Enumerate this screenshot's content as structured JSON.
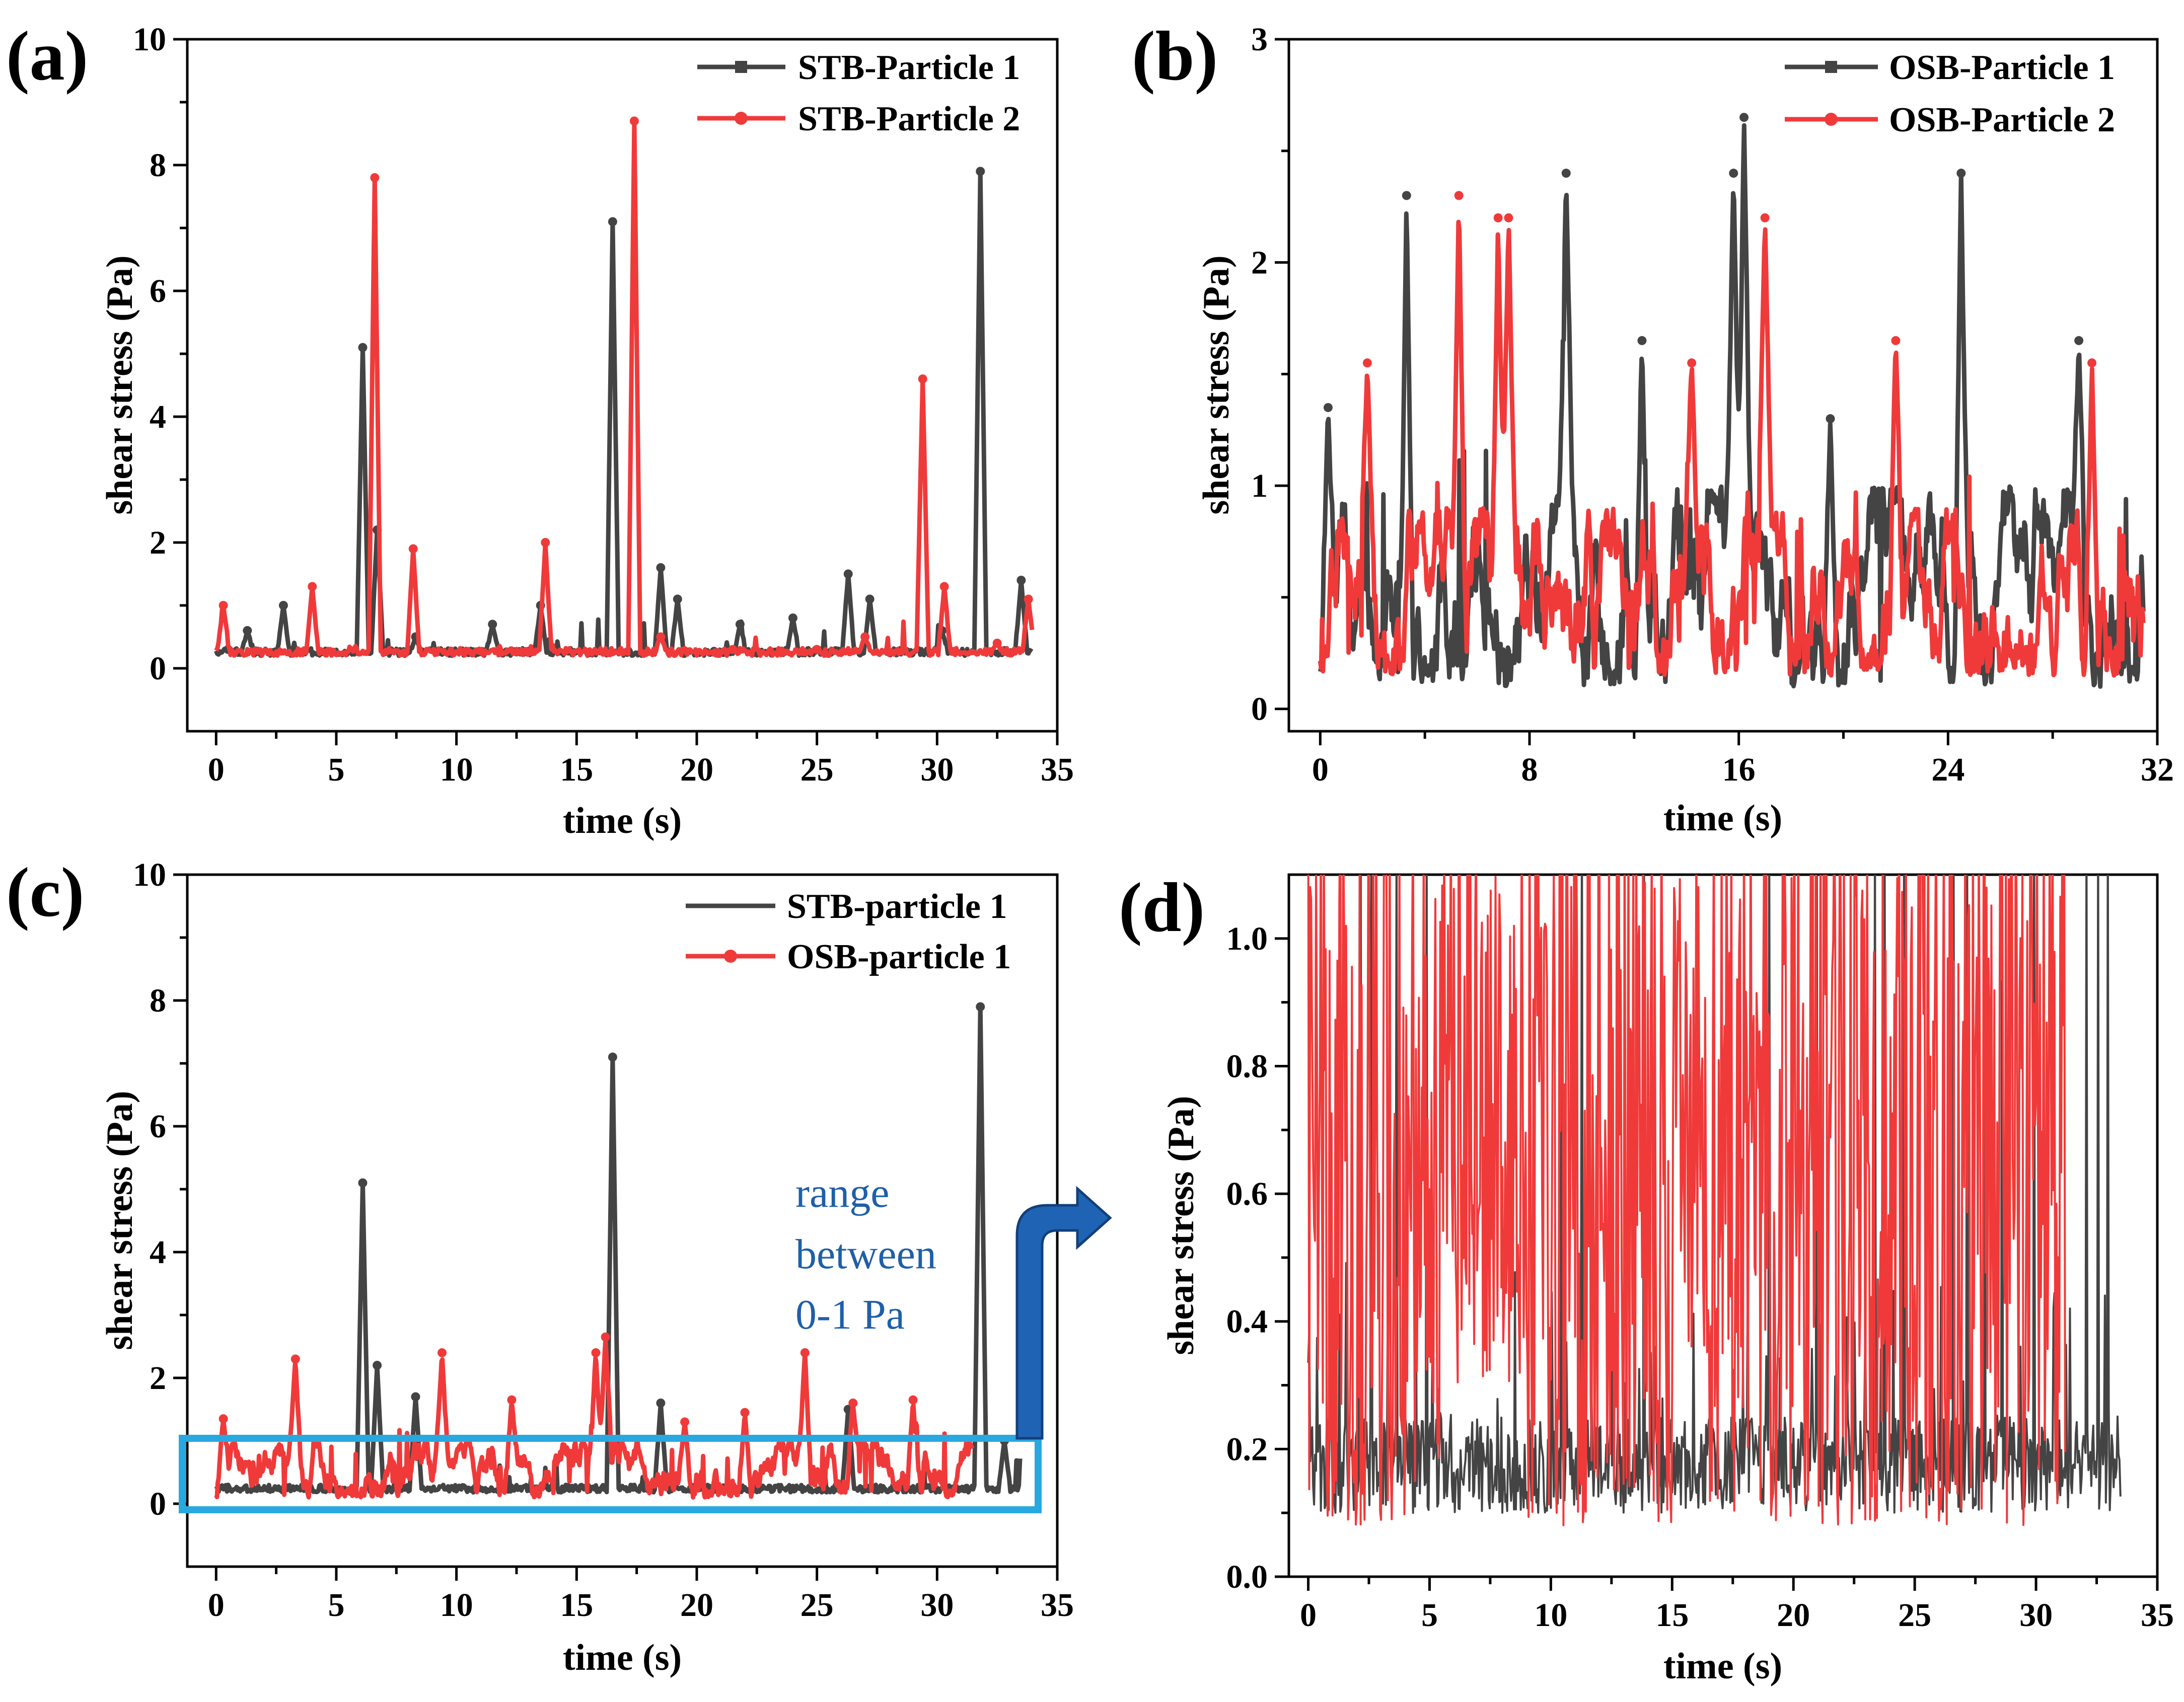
{
  "colors": {
    "black_series": "#444444",
    "red_series": "#f03a3a",
    "box": "#29a8df",
    "arrow": "#1f64b4",
    "annotation": "#1f5fa8"
  },
  "chart_data": [
    {
      "panel": "(a)",
      "type": "line",
      "xlabel": "time (s)",
      "ylabel": "shear stress (Pa)",
      "xlim": [
        -1.2,
        35
      ],
      "ylim": [
        -1,
        10
      ],
      "xticks": [
        "0",
        "5",
        "10",
        "15",
        "20",
        "25",
        "30",
        "35"
      ],
      "yticks": [
        "0",
        "2",
        "4",
        "6",
        "8",
        "10"
      ],
      "legend_position": "top-right",
      "baseline": 0.2,
      "series": [
        {
          "name": "STB-Particle 1",
          "color": "#444444",
          "x_end": 34,
          "peaks": [
            [
              0.5,
              0.3
            ],
            [
              1.3,
              0.6
            ],
            [
              2.8,
              1.0
            ],
            [
              6.1,
              5.1
            ],
            [
              6.7,
              2.2
            ],
            [
              8.3,
              0.5
            ],
            [
              11.5,
              0.7
            ],
            [
              13.5,
              1.0
            ],
            [
              16.5,
              7.1
            ],
            [
              18.5,
              1.6
            ],
            [
              19.2,
              1.1
            ],
            [
              21.8,
              0.7
            ],
            [
              24.0,
              0.8
            ],
            [
              26.3,
              1.5
            ],
            [
              27.2,
              1.1
            ],
            [
              30.2,
              0.6
            ],
            [
              31.8,
              7.9
            ],
            [
              33.5,
              1.4
            ]
          ]
        },
        {
          "name": "STB-Particle 2",
          "color": "#f03a3a",
          "x_end": 34,
          "peaks": [
            [
              0.3,
              1.0
            ],
            [
              4.0,
              1.3
            ],
            [
              6.6,
              7.8
            ],
            [
              8.2,
              1.9
            ],
            [
              13.7,
              2.0
            ],
            [
              17.4,
              8.7
            ],
            [
              18.5,
              0.5
            ],
            [
              21.5,
              0.3
            ],
            [
              25.0,
              0.3
            ],
            [
              27.0,
              0.5
            ],
            [
              29.4,
              4.6
            ],
            [
              30.3,
              1.3
            ],
            [
              32.5,
              0.4
            ],
            [
              33.8,
              1.1
            ]
          ]
        }
      ]
    },
    {
      "panel": "(b)",
      "type": "line",
      "xlabel": "time (s)",
      "ylabel": "shear stress (Pa)",
      "xlim": [
        -1.2,
        32
      ],
      "ylim": [
        -0.1,
        3
      ],
      "xticks": [
        "0",
        "8",
        "16",
        "24",
        "32"
      ],
      "yticks": [
        "0",
        "1",
        "2",
        "3"
      ],
      "legend_position": "top-right",
      "series": [
        {
          "name": "OSB-Particle 1",
          "color": "#444444",
          "x_end": 31.5,
          "low": 0.1,
          "high": 1.0,
          "peaks": [
            [
              0.3,
              1.35
            ],
            [
              3.3,
              2.3
            ],
            [
              9.4,
              2.4
            ],
            [
              15.8,
              2.4
            ],
            [
              16.2,
              2.65
            ],
            [
              24.5,
              2.4
            ],
            [
              29.0,
              1.65
            ],
            [
              12.3,
              1.65
            ],
            [
              19.5,
              1.3
            ]
          ]
        },
        {
          "name": "OSB-Particle 2",
          "color": "#f03a3a",
          "x_end": 31.5,
          "low": 0.15,
          "high": 0.9,
          "peaks": [
            [
              5.3,
              2.3
            ],
            [
              6.8,
              2.2
            ],
            [
              7.2,
              2.2
            ],
            [
              17.0,
              2.2
            ],
            [
              22.0,
              1.65
            ],
            [
              29.5,
              1.55
            ],
            [
              1.8,
              1.55
            ],
            [
              14.2,
              1.55
            ]
          ]
        }
      ]
    },
    {
      "panel": "(c)",
      "type": "line",
      "xlabel": "time (s)",
      "ylabel": "shear stress (Pa)",
      "xlim": [
        -1.2,
        35
      ],
      "ylim": [
        -1,
        10
      ],
      "xticks": [
        "0",
        "5",
        "10",
        "15",
        "20",
        "25",
        "30",
        "35"
      ],
      "yticks": [
        "0",
        "2",
        "4",
        "6",
        "8",
        "10"
      ],
      "legend_position": "top-right",
      "annotation": [
        "range",
        "between",
        "0-1 Pa"
      ],
      "series": [
        {
          "name": "STB-particle 1",
          "color": "#444444",
          "x_end": 33.5,
          "peaks": [
            [
              6.1,
              5.1
            ],
            [
              6.7,
              2.2
            ],
            [
              8.3,
              1.7
            ],
            [
              16.5,
              7.1
            ],
            [
              18.5,
              1.6
            ],
            [
              26.3,
              1.5
            ],
            [
              31.8,
              7.9
            ],
            [
              32.8,
              1.0
            ]
          ]
        },
        {
          "name": "OSB-particle 1",
          "color": "#f03a3a",
          "x_end": 31.5,
          "low": 0.1,
          "high": 1.0,
          "peaks": [
            [
              0.3,
              1.35
            ],
            [
              3.3,
              2.3
            ],
            [
              9.4,
              2.4
            ],
            [
              15.8,
              2.4
            ],
            [
              16.2,
              2.65
            ],
            [
              24.5,
              2.4
            ],
            [
              29.0,
              1.65
            ],
            [
              12.3,
              1.65
            ],
            [
              19.5,
              1.3
            ],
            [
              22.0,
              1.45
            ],
            [
              26.5,
              1.6
            ]
          ]
        }
      ]
    },
    {
      "panel": "(d)",
      "type": "line",
      "xlabel": "time (s)",
      "ylabel": "shear stress (Pa)",
      "xlim": [
        -0.8,
        35
      ],
      "ylim": [
        0.0,
        1.1
      ],
      "xticks": [
        "0",
        "5",
        "10",
        "15",
        "20",
        "25",
        "30",
        "35"
      ],
      "yticks": [
        "0.0",
        "0.2",
        "0.4",
        "0.6",
        "0.8",
        "1.0"
      ],
      "series": [
        {
          "name": "STB-particle 1",
          "color": "#444444",
          "x_end": 33.5,
          "low": 0.1,
          "high": 0.4
        },
        {
          "name": "OSB-particle 1",
          "color": "#f03a3a",
          "x_end": 31.2,
          "low": 0.08,
          "high": 1.1
        }
      ]
    }
  ]
}
